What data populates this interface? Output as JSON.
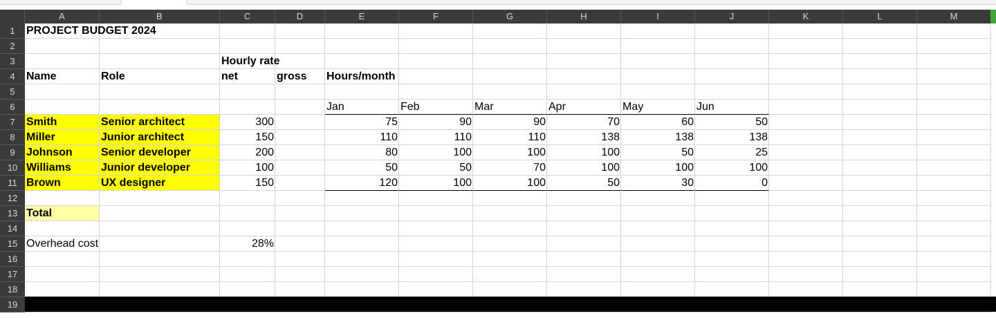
{
  "columns": [
    "A",
    "B",
    "C",
    "D",
    "E",
    "F",
    "G",
    "H",
    "I",
    "J",
    "K",
    "L",
    "M"
  ],
  "rows": [
    "1",
    "2",
    "3",
    "4",
    "5",
    "6",
    "7",
    "8",
    "9",
    "10",
    "11",
    "12",
    "13",
    "14",
    "15",
    "16",
    "17",
    "18",
    "19"
  ],
  "title": "PROJECT BUDGET 2024",
  "headers": {
    "hourly_rate": "Hourly rate",
    "name": "Name",
    "role": "Role",
    "net": "net",
    "gross": "gross",
    "hours_month": "Hours/month"
  },
  "months": [
    "Jan",
    "Feb",
    "Mar",
    "Apr",
    "May",
    "Jun"
  ],
  "staff": [
    {
      "name": "Smith",
      "role": "Senior architect",
      "rate": "300",
      "hours": [
        "75",
        "90",
        "90",
        "70",
        "60",
        "50"
      ]
    },
    {
      "name": "Miller",
      "role": "Junior architect",
      "rate": "150",
      "hours": [
        "110",
        "110",
        "110",
        "138",
        "138",
        "138"
      ]
    },
    {
      "name": "Johnson",
      "role": "Senior developer",
      "rate": "200",
      "hours": [
        "80",
        "100",
        "100",
        "100",
        "50",
        "25"
      ]
    },
    {
      "name": "Williams",
      "role": "Junior developer",
      "rate": "100",
      "hours": [
        "50",
        "50",
        "70",
        "100",
        "100",
        "100"
      ]
    },
    {
      "name": "Brown",
      "role": "UX designer",
      "rate": "150",
      "hours": [
        "120",
        "100",
        "100",
        "50",
        "30",
        "0"
      ]
    }
  ],
  "total_label": "Total",
  "overhead": {
    "label": "Overhead cost",
    "value": "28%"
  },
  "colors": {
    "highlight": "#ffff00",
    "total_highlight": "#ffffa6",
    "header_bg": "#3b3b3b"
  }
}
